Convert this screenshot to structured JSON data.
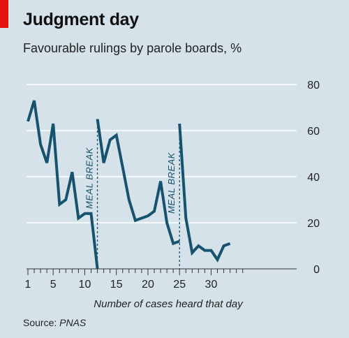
{
  "title": "Judgment day",
  "subtitle": "Favourable rulings by parole boards, %",
  "source_prefix": "Source: ",
  "source_name": "PNAS",
  "colors": {
    "background": "#d5e2ea",
    "line": "#17536f",
    "grid": "#ffffff",
    "accent": "#e3120b"
  },
  "chart_data": {
    "type": "line",
    "title": "Judgment day",
    "subtitle": "Favourable rulings by parole boards, %",
    "xlabel": "Number of cases heard that day",
    "ylabel": "Favourable rulings by parole boards, %",
    "xlim": [
      1,
      35
    ],
    "ylim": [
      0,
      80
    ],
    "xticks": [
      1,
      5,
      10,
      15,
      20,
      25,
      30
    ],
    "yticks": [
      0,
      20,
      40,
      60,
      80
    ],
    "grid": true,
    "segments": [
      {
        "x": [
          1,
          2,
          3,
          4,
          5,
          6,
          7,
          8,
          9,
          10,
          11,
          12
        ],
        "y": [
          64,
          73,
          54,
          46,
          63,
          28,
          30,
          42,
          22,
          24,
          24,
          0
        ]
      },
      {
        "x": [
          12,
          13,
          14,
          15,
          16,
          17,
          18,
          19,
          20,
          21,
          22,
          23,
          24,
          25
        ],
        "y": [
          65,
          46,
          56,
          58,
          44,
          30,
          21,
          22,
          23,
          25,
          38,
          20,
          11,
          12
        ]
      },
      {
        "x": [
          25,
          26,
          27,
          28,
          29,
          30,
          31,
          32,
          33
        ],
        "y": [
          63,
          22,
          7,
          10,
          8,
          8,
          4,
          10,
          11
        ]
      }
    ],
    "annotations": [
      {
        "text": "MEAL BREAK",
        "x": 12
      },
      {
        "text": "MEAL BREAK",
        "x": 25
      }
    ]
  }
}
